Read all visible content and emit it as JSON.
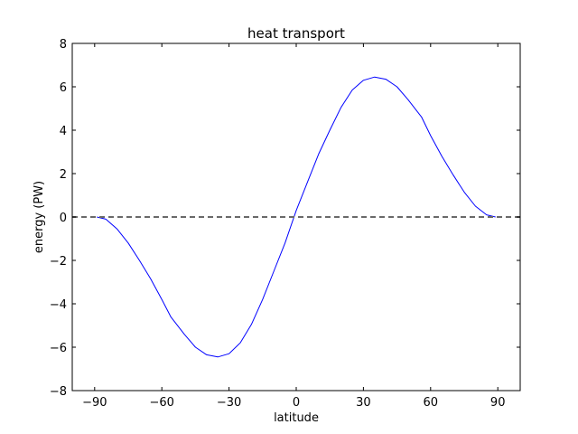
{
  "chart_data": {
    "type": "line",
    "title": "heat transport",
    "xlabel": "latitude",
    "ylabel": "energy (PW)",
    "xlim": [
      -100,
      100
    ],
    "ylim": [
      -8,
      8
    ],
    "xticks": [
      -90,
      -60,
      -30,
      0,
      30,
      60,
      90
    ],
    "yticks": [
      -8,
      -6,
      -4,
      -2,
      0,
      2,
      4,
      6,
      8
    ],
    "xtick_labels": [
      "−90",
      "−60",
      "−30",
      "0",
      "30",
      "60",
      "90"
    ],
    "ytick_labels": [
      "−8",
      "−6",
      "−4",
      "−2",
      "0",
      "2",
      "4",
      "6",
      "8"
    ],
    "grid": false,
    "legend": "none",
    "series": [
      {
        "color": "#0000ff",
        "style": "solid",
        "x": [
          -89,
          -85,
          -80,
          -75,
          -70,
          -65,
          -60,
          -56,
          -50,
          -45,
          -40,
          -35,
          -30,
          -25,
          -20,
          -15,
          -10,
          -5,
          0,
          5,
          10,
          15,
          20,
          25,
          30,
          35,
          40,
          45,
          50,
          56,
          60,
          65,
          70,
          75,
          80,
          85,
          89
        ],
        "y": [
          0,
          -0.1,
          -0.55,
          -1.2,
          -2.0,
          -2.85,
          -3.8,
          -4.6,
          -5.4,
          -6.0,
          -6.35,
          -6.45,
          -6.3,
          -5.8,
          -4.95,
          -3.8,
          -2.5,
          -1.2,
          0.3,
          1.6,
          2.9,
          4.0,
          5.05,
          5.85,
          6.3,
          6.45,
          6.35,
          6.0,
          5.4,
          4.6,
          3.75,
          2.8,
          1.95,
          1.15,
          0.5,
          0.1,
          0
        ]
      },
      {
        "color": "#696969",
        "style": "dashed",
        "x": [
          -100,
          100
        ],
        "y": [
          0,
          0
        ]
      }
    ]
  }
}
